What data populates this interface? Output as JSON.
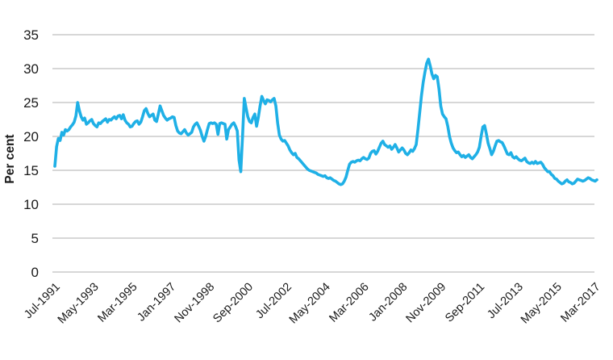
{
  "styles": {
    "line_color": "#1FB0E6",
    "grid_color": "#BFBFBF",
    "text_color": "#1a1a1a",
    "background": "#FFFFFF"
  },
  "chart_data": {
    "type": "line",
    "title": "",
    "xlabel": "",
    "ylabel": "Per cent",
    "legend": "none",
    "grid": "horizontal",
    "ylim": [
      0,
      35
    ],
    "y_ticks": [
      0,
      5,
      10,
      15,
      20,
      25,
      30,
      35
    ],
    "frequency": "monthly",
    "start_month": "Jul-1991",
    "end_month": "Apr-2017",
    "x_tick_every_months": 22,
    "x_tick_labels": [
      "Jul-1991",
      "May-1993",
      "Mar-1995",
      "Jan-1997",
      "Nov-1998",
      "Sep-2000",
      "Jul-2002",
      "May-2004",
      "Mar-2006",
      "Jan-2008",
      "Nov-2009",
      "Sep-2011",
      "Jul-2013",
      "May-2015",
      "Mar-2017"
    ],
    "series": [
      {
        "name": "Per cent",
        "color": "#1FB0E6",
        "values": [
          15.6,
          18.5,
          19.7,
          19.4,
          20.6,
          20.2,
          21.0,
          20.8,
          21.0,
          21.4,
          21.7,
          22.1,
          23.0,
          25.0,
          23.8,
          22.9,
          22.4,
          22.7,
          21.8,
          22.0,
          22.3,
          22.5,
          21.9,
          21.6,
          21.4,
          22.0,
          21.9,
          22.2,
          22.4,
          22.6,
          22.1,
          22.5,
          22.4,
          22.7,
          22.9,
          22.6,
          23.0,
          23.1,
          22.6,
          23.2,
          22.4,
          22.0,
          21.8,
          21.4,
          21.5,
          21.9,
          22.2,
          22.3,
          21.8,
          22.1,
          22.9,
          23.8,
          24.1,
          23.4,
          22.9,
          23.1,
          23.3,
          22.4,
          22.2,
          23.3,
          24.5,
          23.8,
          23.1,
          22.7,
          22.4,
          22.6,
          22.7,
          22.9,
          22.8,
          21.6,
          20.8,
          20.5,
          20.4,
          20.7,
          21.0,
          20.5,
          20.2,
          20.4,
          20.6,
          21.4,
          21.8,
          22.0,
          21.5,
          20.9,
          20.0,
          19.3,
          20.0,
          21.0,
          21.9,
          22.0,
          21.9,
          22.0,
          21.8,
          20.3,
          21.9,
          22.0,
          21.9,
          21.8,
          19.6,
          21.0,
          21.4,
          21.8,
          22.0,
          21.5,
          20.8,
          16.5,
          14.8,
          20.0,
          25.6,
          24.2,
          22.9,
          22.2,
          22.0,
          22.8,
          23.3,
          21.5,
          22.8,
          24.5,
          25.9,
          25.3,
          24.8,
          25.4,
          25.3,
          25.1,
          25.4,
          25.6,
          24.5,
          22.0,
          20.2,
          19.6,
          19.3,
          19.4,
          19.0,
          18.6,
          18.0,
          17.6,
          17.3,
          17.5,
          16.9,
          16.7,
          16.4,
          16.1,
          15.8,
          15.5,
          15.2,
          15.0,
          14.9,
          14.8,
          14.7,
          14.6,
          14.4,
          14.3,
          14.2,
          14.1,
          14.2,
          13.9,
          13.8,
          13.9,
          13.7,
          13.5,
          13.4,
          13.2,
          13.0,
          12.9,
          13.0,
          13.4,
          14.0,
          15.0,
          15.9,
          16.2,
          16.3,
          16.2,
          16.4,
          16.5,
          16.4,
          16.7,
          16.9,
          16.7,
          16.6,
          16.8,
          17.5,
          17.8,
          17.9,
          17.4,
          17.8,
          18.4,
          19.0,
          19.3,
          18.8,
          18.6,
          18.4,
          18.6,
          18.1,
          18.4,
          18.8,
          18.3,
          17.7,
          18.0,
          18.3,
          18.0,
          17.5,
          17.3,
          17.6,
          18.0,
          17.8,
          18.2,
          18.8,
          21.0,
          23.5,
          26.0,
          28.0,
          29.5,
          30.8,
          31.4,
          30.4,
          29.2,
          28.5,
          29.0,
          28.8,
          27.0,
          24.5,
          23.3,
          22.9,
          22.6,
          21.5,
          20.0,
          19.0,
          18.3,
          17.9,
          17.6,
          17.7,
          17.3,
          17.0,
          17.2,
          16.9,
          17.1,
          17.3,
          16.9,
          16.7,
          17.0,
          17.3,
          17.7,
          18.4,
          20.0,
          21.4,
          21.6,
          20.4,
          19.0,
          18.2,
          17.3,
          17.8,
          18.6,
          19.3,
          19.4,
          19.2,
          19.1,
          18.6,
          18.0,
          17.4,
          17.3,
          17.6,
          17.0,
          16.8,
          17.0,
          16.7,
          16.5,
          16.4,
          16.6,
          16.8,
          16.3,
          16.1,
          16.0,
          16.2,
          16.0,
          16.3,
          16.0,
          16.1,
          16.2,
          15.9,
          15.4,
          15.1,
          14.8,
          14.8,
          14.4,
          14.2,
          13.8,
          13.7,
          13.4,
          13.2,
          13.0,
          13.1,
          13.4,
          13.6,
          13.3,
          13.2,
          13.0,
          13.1,
          13.4,
          13.7,
          13.6,
          13.5,
          13.4,
          13.5,
          13.7,
          13.9,
          13.8,
          13.6,
          13.5,
          13.4,
          13.6
        ]
      }
    ]
  }
}
